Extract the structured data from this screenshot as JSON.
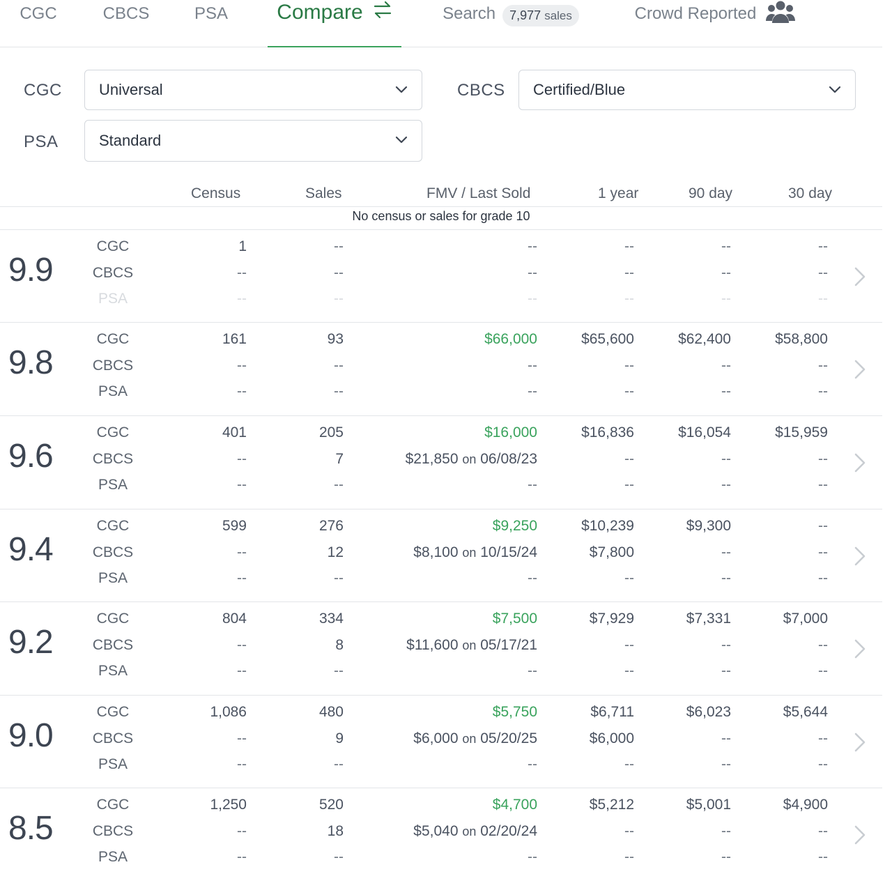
{
  "tabs": [
    {
      "label": "CGC"
    },
    {
      "label": "CBCS"
    },
    {
      "label": "PSA"
    },
    {
      "label": "Compare",
      "active": true,
      "icon": "swap-arrows-icon"
    },
    {
      "label": "Search",
      "badge_count": "7,977",
      "badge_unit": "sales"
    },
    {
      "label": "Crowd Reported",
      "icon": "users-group-icon"
    }
  ],
  "filters": {
    "cgc": {
      "label": "CGC",
      "value": "Universal"
    },
    "cbcs": {
      "label": "CBCS",
      "value": "Certified/Blue"
    },
    "psa": {
      "label": "PSA",
      "value": "Standard"
    }
  },
  "table": {
    "columns": [
      "Census",
      "Sales",
      "FMV / Last Sold",
      "1 year",
      "90 day",
      "30 day"
    ],
    "notice": "No census or sales for grade 10",
    "rows": [
      {
        "grade": "9.9",
        "companies": [
          {
            "name": "CGC",
            "census": "1",
            "sales": "--",
            "fmv": "--",
            "y1": "--",
            "d90": "--",
            "d30": "--"
          },
          {
            "name": "CBCS",
            "census": "--",
            "sales": "--",
            "fmv": "--",
            "y1": "--",
            "d90": "--",
            "d30": "--"
          },
          {
            "name": "PSA",
            "faded": true,
            "census": "--",
            "sales": "--",
            "fmv": "--",
            "y1": "--",
            "d90": "--",
            "d30": "--"
          }
        ]
      },
      {
        "grade": "9.8",
        "companies": [
          {
            "name": "CGC",
            "census": "161",
            "sales": "93",
            "fmv": "$66,000",
            "fmv_green": true,
            "y1": "$65,600",
            "d90": "$62,400",
            "d30": "$58,800"
          },
          {
            "name": "CBCS",
            "census": "--",
            "sales": "--",
            "fmv": "--",
            "y1": "--",
            "d90": "--",
            "d30": "--"
          },
          {
            "name": "PSA",
            "census": "--",
            "sales": "--",
            "fmv": "--",
            "y1": "--",
            "d90": "--",
            "d30": "--"
          }
        ]
      },
      {
        "grade": "9.6",
        "companies": [
          {
            "name": "CGC",
            "census": "401",
            "sales": "205",
            "fmv": "$16,000",
            "fmv_green": true,
            "y1": "$16,836",
            "d90": "$16,054",
            "d30": "$15,959"
          },
          {
            "name": "CBCS",
            "census": "--",
            "sales": "7",
            "fmv": "$21,850",
            "fmv_on": "on",
            "fmv_date": "06/08/23",
            "y1": "--",
            "d90": "--",
            "d30": "--"
          },
          {
            "name": "PSA",
            "census": "--",
            "sales": "--",
            "fmv": "--",
            "y1": "--",
            "d90": "--",
            "d30": "--"
          }
        ]
      },
      {
        "grade": "9.4",
        "companies": [
          {
            "name": "CGC",
            "census": "599",
            "sales": "276",
            "fmv": "$9,250",
            "fmv_green": true,
            "y1": "$10,239",
            "d90": "$9,300",
            "d30": "--"
          },
          {
            "name": "CBCS",
            "census": "--",
            "sales": "12",
            "fmv": "$8,100",
            "fmv_on": "on",
            "fmv_date": "10/15/24",
            "y1": "$7,800",
            "d90": "--",
            "d30": "--"
          },
          {
            "name": "PSA",
            "census": "--",
            "sales": "--",
            "fmv": "--",
            "y1": "--",
            "d90": "--",
            "d30": "--"
          }
        ]
      },
      {
        "grade": "9.2",
        "companies": [
          {
            "name": "CGC",
            "census": "804",
            "sales": "334",
            "fmv": "$7,500",
            "fmv_green": true,
            "y1": "$7,929",
            "d90": "$7,331",
            "d30": "$7,000"
          },
          {
            "name": "CBCS",
            "census": "--",
            "sales": "8",
            "fmv": "$11,600",
            "fmv_on": "on",
            "fmv_date": "05/17/21",
            "y1": "--",
            "d90": "--",
            "d30": "--"
          },
          {
            "name": "PSA",
            "census": "--",
            "sales": "--",
            "fmv": "--",
            "y1": "--",
            "d90": "--",
            "d30": "--"
          }
        ]
      },
      {
        "grade": "9.0",
        "companies": [
          {
            "name": "CGC",
            "census": "1,086",
            "sales": "480",
            "fmv": "$5,750",
            "fmv_green": true,
            "y1": "$6,711",
            "d90": "$6,023",
            "d30": "$5,644"
          },
          {
            "name": "CBCS",
            "census": "--",
            "sales": "9",
            "fmv": "$6,000",
            "fmv_on": "on",
            "fmv_date": "05/20/25",
            "y1": "$6,000",
            "d90": "--",
            "d30": "--"
          },
          {
            "name": "PSA",
            "census": "--",
            "sales": "--",
            "fmv": "--",
            "y1": "--",
            "d90": "--",
            "d30": "--"
          }
        ]
      },
      {
        "grade": "8.5",
        "companies": [
          {
            "name": "CGC",
            "census": "1,250",
            "sales": "520",
            "fmv": "$4,700",
            "fmv_green": true,
            "y1": "$5,212",
            "d90": "$5,001",
            "d30": "$4,900"
          },
          {
            "name": "CBCS",
            "census": "--",
            "sales": "18",
            "fmv": "$5,040",
            "fmv_on": "on",
            "fmv_date": "02/20/24",
            "y1": "--",
            "d90": "--",
            "d30": "--"
          },
          {
            "name": "PSA",
            "census": "--",
            "sales": "--",
            "fmv": "--",
            "y1": "--",
            "d90": "--",
            "d30": "--"
          }
        ]
      }
    ]
  },
  "colors": {
    "accent_green": "#3aa35d",
    "tab_active": "#2a7a45",
    "muted_text": "#7a828c"
  }
}
